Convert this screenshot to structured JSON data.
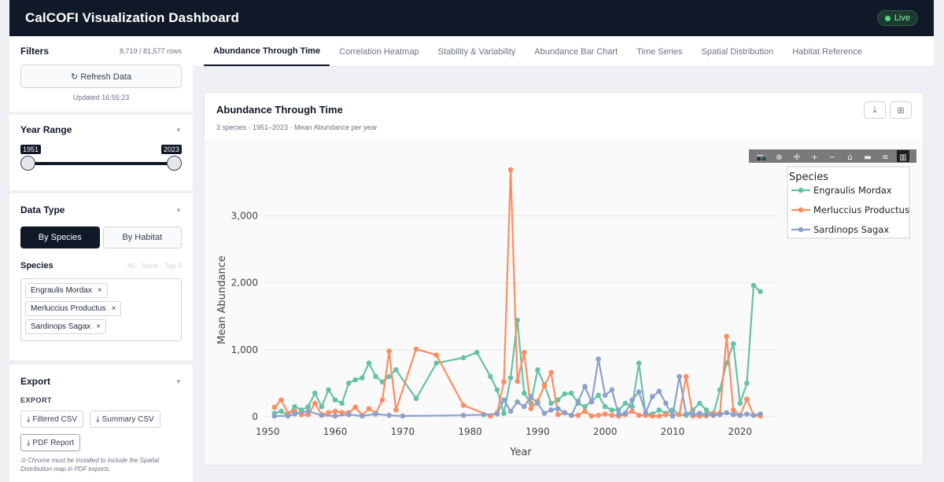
{
  "app": {
    "title": "CalCOFI Visualization Dashboard",
    "status": "Live"
  },
  "sidebar": {
    "filters": {
      "title": "Filters",
      "rows": "8,719 / 81,577 rows",
      "refresh_label": "↻ Refresh Data",
      "updated": "Updated 16:55:23"
    },
    "year_range": {
      "title": "Year Range",
      "min": "1951",
      "max": "2023"
    },
    "data_type": {
      "title": "Data Type",
      "options": [
        "By Species",
        "By Habitat"
      ],
      "selected": "By Species",
      "species_label": "Species",
      "species_links": "All · None · Top 5",
      "species": [
        "Engraulis Mordax",
        "Merluccius Productus",
        "Sardinops Sagax"
      ]
    },
    "export": {
      "title": "Export",
      "subtitle": "EXPORT",
      "buttons": [
        "Filtered CSV",
        "Summary CSV",
        "PDF Report"
      ],
      "note": "Chrome must be installed to include the Spatial Distribution map in PDF exports."
    }
  },
  "tabs": [
    "Abundance Through Time",
    "Correlation Heatmap",
    "Stability & Variability",
    "Abundance Bar Chart",
    "Time Series",
    "Spatial Distribution",
    "Habitat Reference"
  ],
  "active_tab": "Abundance Through Time",
  "chart_card": {
    "title": "Abundance Through Time",
    "subtitle": "3 species · 1951–2023 · Mean Abundance per year"
  },
  "colors": {
    "engraulis": "#66c2a5",
    "merluccius": "#fc8d62",
    "sardinops": "#8da0cb"
  },
  "chart_data": {
    "type": "line",
    "xlabel": "Year",
    "ylabel": "Mean Abundance",
    "xlim": [
      1949.5,
      2025.5
    ],
    "ylim": [
      -60,
      3900
    ],
    "x_ticks": [
      1950,
      1960,
      1970,
      1980,
      1990,
      2000,
      2010,
      2020
    ],
    "y_ticks": [
      0,
      1000,
      2000,
      3000
    ],
    "y_tick_labels": [
      "0",
      "1,000",
      "2,000",
      "3,000"
    ],
    "legend_title": "Species",
    "legend_position": "top-right",
    "grid": true,
    "series": [
      {
        "name": "Engraulis Mordax",
        "color": "#66c2a5",
        "x": [
          1951,
          1952,
          1953,
          1954,
          1955,
          1956,
          1957,
          1958,
          1959,
          1960,
          1961,
          1962,
          1963,
          1964,
          1965,
          1966,
          1967,
          1968,
          1969,
          1972,
          1975,
          1979,
          1981,
          1983,
          1984,
          1985,
          1986,
          1987,
          1988,
          1989,
          1990,
          1991,
          1992,
          1993,
          1994,
          1995,
          1996,
          1997,
          1998,
          1999,
          2000,
          2001,
          2002,
          2003,
          2004,
          2005,
          2006,
          2007,
          2008,
          2009,
          2010,
          2011,
          2012,
          2013,
          2014,
          2015,
          2016,
          2017,
          2018,
          2019,
          2020,
          2021,
          2022,
          2023
        ],
        "y": [
          50,
          80,
          20,
          150,
          100,
          150,
          350,
          150,
          400,
          250,
          200,
          500,
          550,
          580,
          800,
          600,
          520,
          600,
          700,
          270,
          800,
          880,
          960,
          600,
          400,
          50,
          580,
          1440,
          350,
          200,
          700,
          480,
          200,
          250,
          340,
          350,
          200,
          150,
          230,
          320,
          150,
          100,
          100,
          200,
          150,
          800,
          30,
          40,
          100,
          50,
          100,
          30,
          20,
          100,
          200,
          100,
          20,
          400,
          800,
          1090,
          200,
          500,
          1960,
          1870
        ]
      },
      {
        "name": "Merluccius Productus",
        "color": "#fc8d62",
        "x": [
          1951,
          1952,
          1953,
          1954,
          1955,
          1956,
          1957,
          1958,
          1959,
          1960,
          1961,
          1962,
          1963,
          1964,
          1965,
          1966,
          1967,
          1968,
          1969,
          1972,
          1975,
          1979,
          1983,
          1984,
          1985,
          1986,
          1987,
          1988,
          1989,
          1990,
          1991,
          1992,
          1993,
          1994,
          1995,
          1996,
          1997,
          1998,
          1999,
          2000,
          2001,
          2002,
          2003,
          2004,
          2005,
          2006,
          2007,
          2008,
          2009,
          2010,
          2011,
          2012,
          2013,
          2014,
          2015,
          2016,
          2017,
          2018,
          2019,
          2020,
          2021,
          2022,
          2023
        ],
        "y": [
          140,
          250,
          50,
          80,
          30,
          30,
          200,
          30,
          60,
          80,
          60,
          60,
          140,
          20,
          120,
          50,
          250,
          980,
          100,
          1010,
          920,
          170,
          10,
          60,
          520,
          3690,
          530,
          960,
          120,
          230,
          460,
          660,
          30,
          60,
          20,
          20,
          80,
          10,
          20,
          40,
          20,
          10,
          30,
          80,
          20,
          20,
          10,
          10,
          30,
          20,
          30,
          600,
          10,
          10,
          10,
          50,
          50,
          1200,
          100,
          20,
          260,
          20,
          10
        ]
      },
      {
        "name": "Sardinops Sagax",
        "color": "#8da0cb",
        "x": [
          1951,
          1953,
          1954,
          1956,
          1958,
          1960,
          1962,
          1964,
          1966,
          1968,
          1970,
          1979,
          1982,
          1984,
          1985,
          1986,
          1987,
          1988,
          1989,
          1990,
          1991,
          1992,
          1993,
          1994,
          1995,
          1996,
          1997,
          1998,
          1999,
          2000,
          2001,
          2002,
          2003,
          2004,
          2005,
          2006,
          2007,
          2008,
          2009,
          2010,
          2011,
          2012,
          2013,
          2014,
          2015,
          2016,
          2017,
          2018,
          2019,
          2020,
          2021,
          2022,
          2023
        ],
        "y": [
          10,
          10,
          40,
          80,
          20,
          10,
          30,
          10,
          40,
          20,
          10,
          20,
          30,
          40,
          250,
          80,
          220,
          150,
          300,
          200,
          50,
          100,
          120,
          60,
          20,
          230,
          450,
          220,
          860,
          320,
          400,
          30,
          50,
          250,
          370,
          60,
          300,
          380,
          200,
          10,
          600,
          40,
          30,
          50,
          30,
          20,
          30,
          60,
          30,
          20,
          40,
          20,
          40
        ]
      }
    ]
  }
}
